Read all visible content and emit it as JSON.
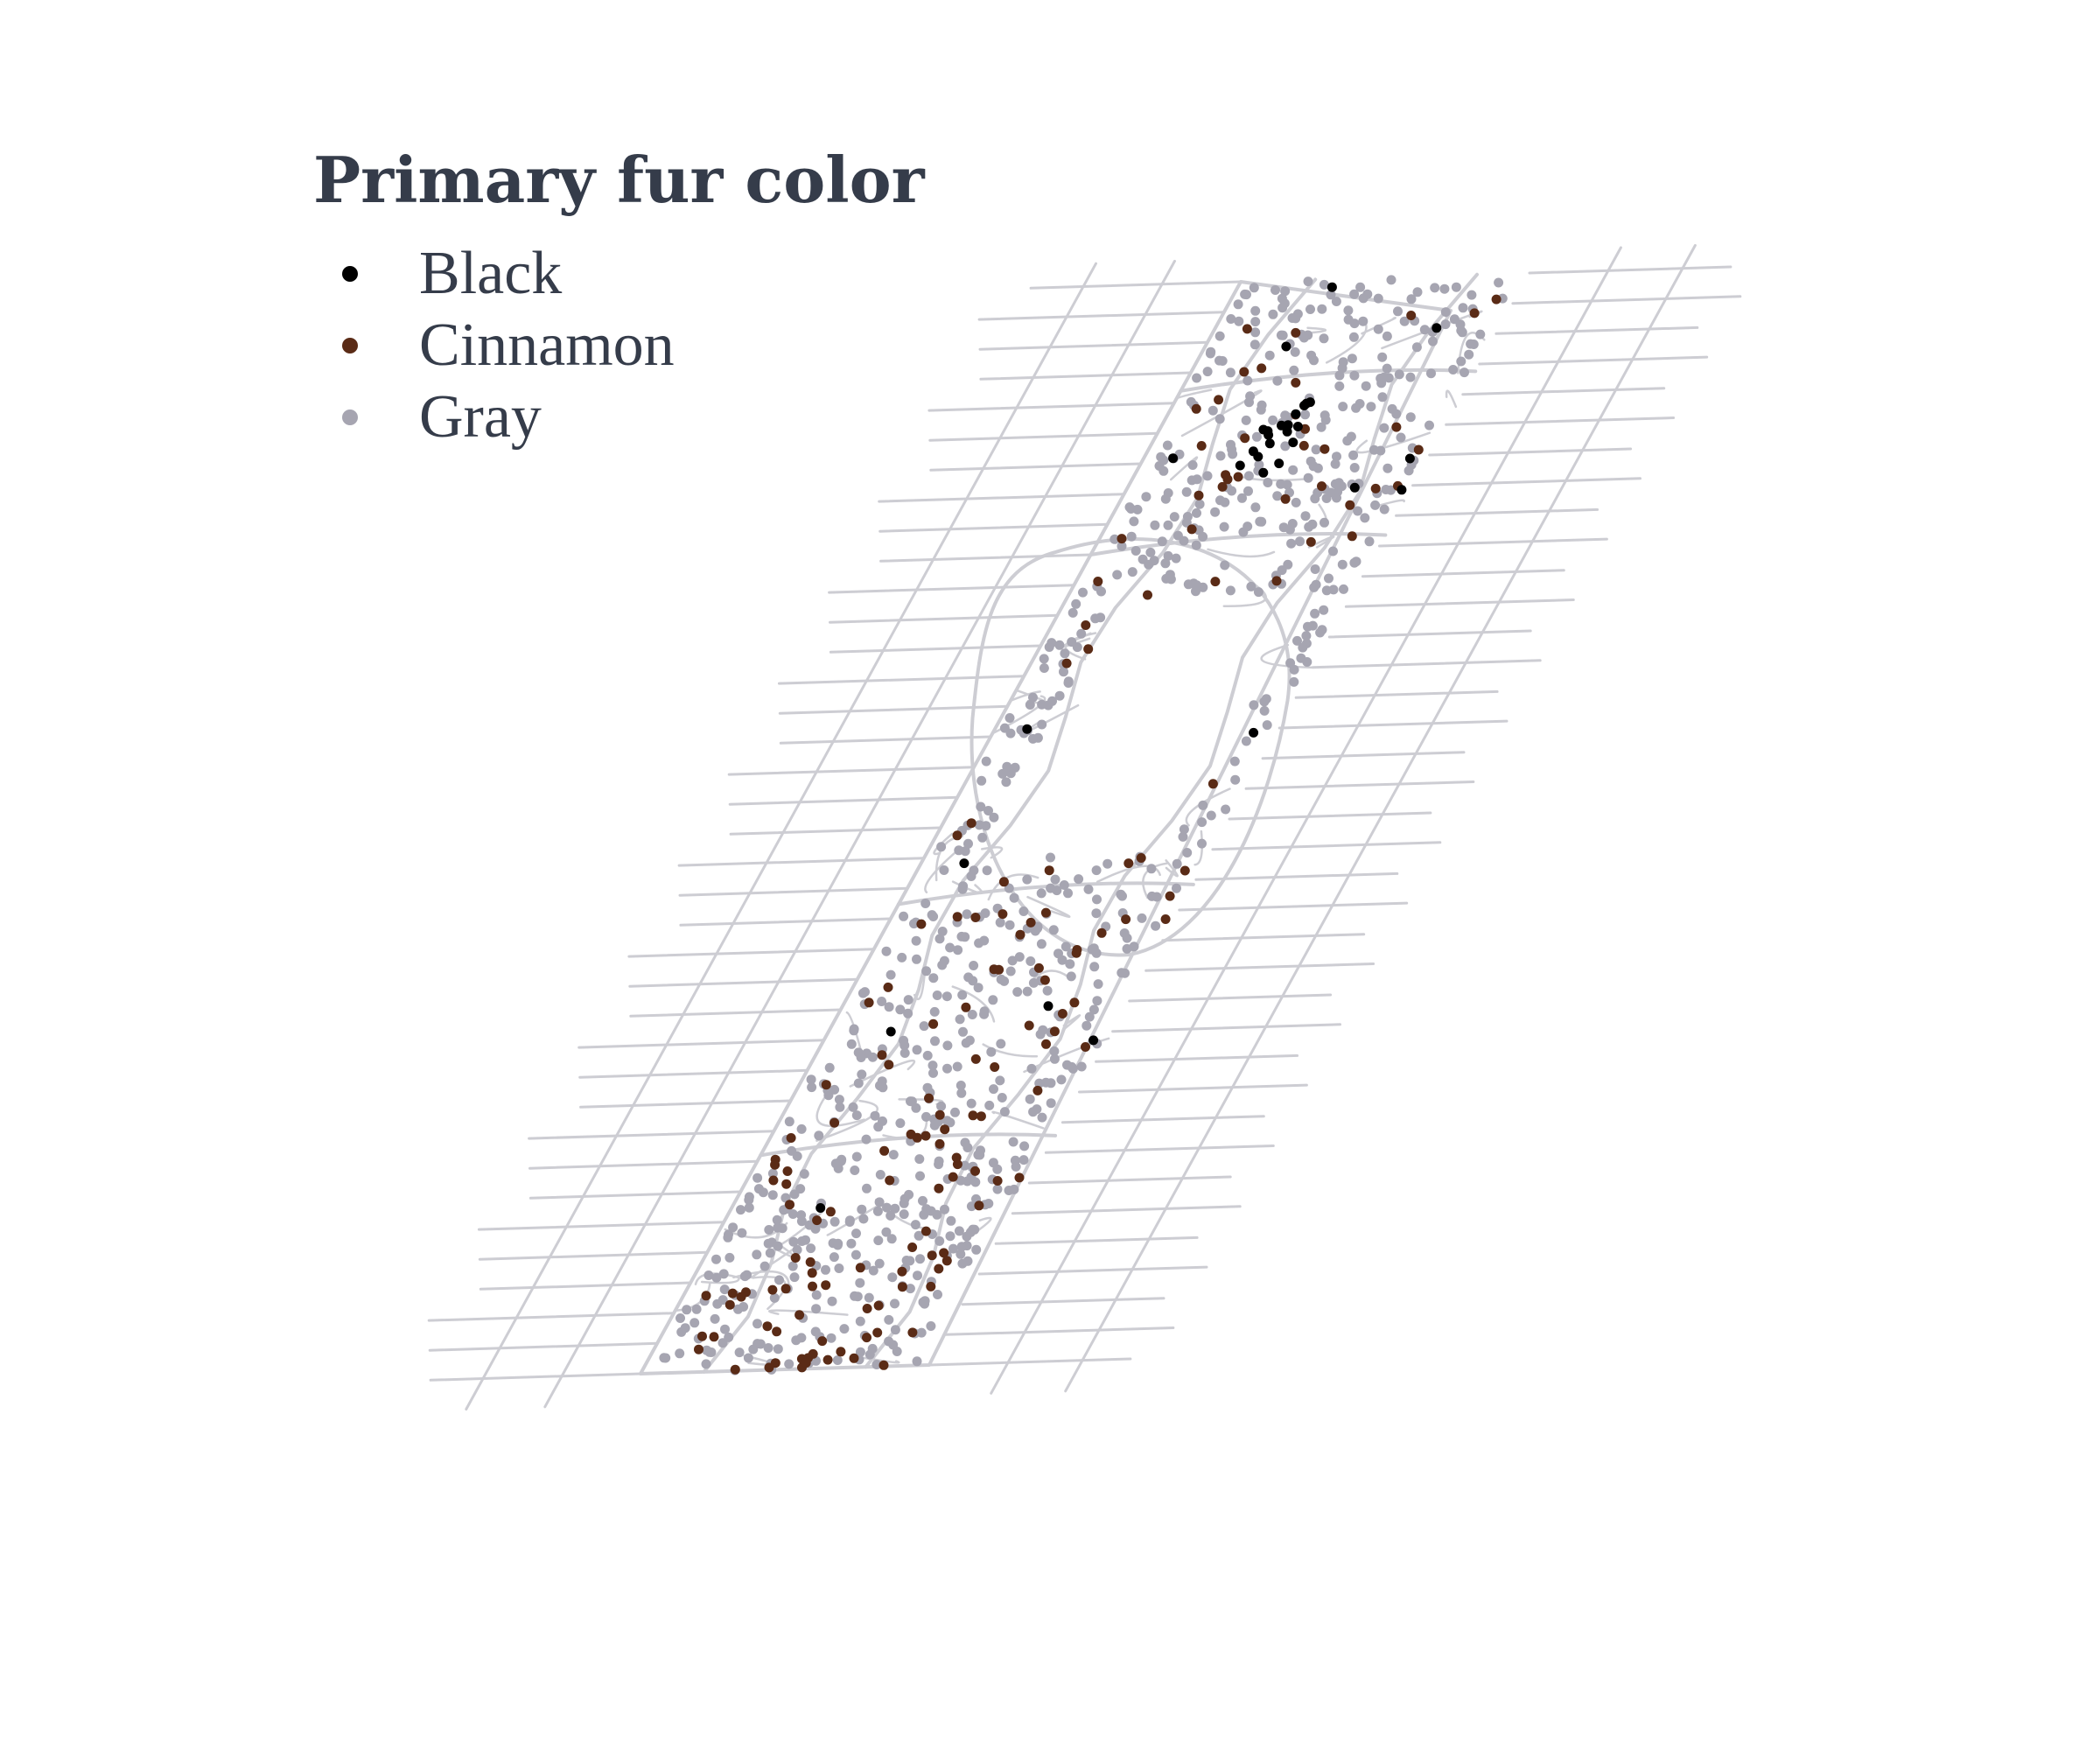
{
  "legend": {
    "title": "Primary fur color",
    "items": [
      {
        "label": "Black",
        "color": "#000000"
      },
      {
        "label": "Cinnamon",
        "color": "#5a2b16"
      },
      {
        "label": "Gray",
        "color": "#a6a5b1"
      }
    ]
  },
  "colors": {
    "street": "#cdcdd3",
    "text": "#353c4a"
  },
  "map_data": {
    "type": "scatter-map",
    "sightings": {
      "Black": 32,
      "Cinnamon": 155,
      "Gray": 840
    }
  }
}
